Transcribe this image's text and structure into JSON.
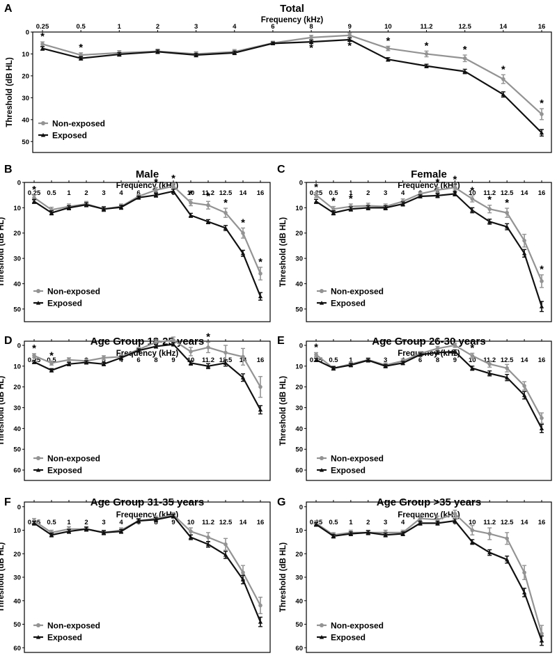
{
  "figure": {
    "series_legend": [
      "Non-exposed",
      "Exposed"
    ],
    "colors": {
      "non_exposed": "#939393",
      "exposed": "#111111"
    }
  },
  "chart_data": [
    {
      "type": "line",
      "panel": "A",
      "title": "Total",
      "xlabel": "Frequency (kHz)",
      "ylabel": "Threshold (dB HL)",
      "categories": [
        "0.25",
        "0.5",
        "1",
        "2",
        "3",
        "4",
        "6",
        "8",
        "9",
        "10",
        "11.2",
        "12.5",
        "14",
        "16"
      ],
      "ylim": [
        0,
        55
      ],
      "yticks": [
        0,
        10,
        20,
        30,
        40,
        50
      ],
      "y_inverted": true,
      "series": [
        {
          "name": "Non-exposed",
          "values": [
            5.5,
            10.5,
            9.5,
            8.8,
            10,
            9.0,
            5,
            2.5,
            1.5,
            7.5,
            10,
            12,
            21.5,
            37.5
          ],
          "errors": [
            1,
            1,
            1,
            1,
            1,
            1,
            0.8,
            1,
            1,
            1,
            1.3,
            1.5,
            2,
            2.5
          ]
        },
        {
          "name": "Exposed",
          "values": [
            7.5,
            12,
            10.2,
            9,
            10.5,
            9.5,
            5.2,
            4.5,
            3.5,
            12.5,
            15.5,
            18,
            28.5,
            46
          ],
          "errors": [
            0.8,
            0.8,
            0.8,
            0.8,
            0.8,
            0.8,
            0.6,
            0.8,
            0.8,
            0.8,
            0.8,
            1,
            1.2,
            1.5
          ]
        }
      ],
      "significance": [
        {
          "category": "0.25",
          "position": "above"
        },
        {
          "category": "0.5",
          "position": "above"
        },
        {
          "category": "8",
          "position": "below"
        },
        {
          "category": "9",
          "position": "below"
        },
        {
          "category": "10",
          "position": "above"
        },
        {
          "category": "11.2",
          "position": "above"
        },
        {
          "category": "12.5",
          "position": "above"
        },
        {
          "category": "14",
          "position": "above"
        },
        {
          "category": "16",
          "position": "above"
        }
      ],
      "significance_marker": "*"
    },
    {
      "type": "line",
      "panel": "B",
      "title": "Male",
      "xlabel": "Frequency (kHz)",
      "ylabel": "Threshold (dB HL)",
      "categories": [
        "0.25",
        "0.5",
        "1",
        "2",
        "3",
        "4",
        "6",
        "8",
        "9",
        "10",
        "11.2",
        "12.5",
        "14",
        "16"
      ],
      "ylim": [
        0,
        55
      ],
      "yticks": [
        0,
        10,
        20,
        30,
        40,
        50
      ],
      "y_inverted": true,
      "series": [
        {
          "name": "Non-exposed",
          "values": [
            6,
            10.8,
            9.5,
            8.5,
            10.5,
            9.5,
            5.5,
            3.0,
            1.5,
            8,
            9,
            12,
            20,
            36
          ],
          "errors": [
            1,
            1,
            1,
            1,
            1,
            1,
            0.8,
            1,
            1,
            1.2,
            1.5,
            1.8,
            2,
            2.5
          ]
        },
        {
          "name": "Exposed",
          "values": [
            7.5,
            12,
            10,
            8.8,
            10.5,
            9.8,
            6,
            5,
            3.5,
            13,
            15.5,
            18,
            28,
            45
          ],
          "errors": [
            0.8,
            0.8,
            0.8,
            0.8,
            0.8,
            0.8,
            0.6,
            0.8,
            0.8,
            0.8,
            0.8,
            1,
            1.2,
            1.5
          ]
        }
      ],
      "significance": [
        {
          "category": "0.25",
          "position": "above"
        },
        {
          "category": "8",
          "position": "above"
        },
        {
          "category": "9",
          "position": "above"
        },
        {
          "category": "10",
          "position": "above"
        },
        {
          "category": "11.2",
          "position": "above"
        },
        {
          "category": "12.5",
          "position": "above"
        },
        {
          "category": "14",
          "position": "above"
        },
        {
          "category": "16",
          "position": "above"
        }
      ],
      "significance_marker": "*"
    },
    {
      "type": "line",
      "panel": "C",
      "title": "Female",
      "xlabel": "Frequency (kHz)",
      "ylabel": "Threshold (dB HL)",
      "categories": [
        "0.25",
        "0.5",
        "1",
        "2",
        "3",
        "4",
        "6",
        "8",
        "9",
        "10",
        "11.2",
        "12.5",
        "14",
        "16"
      ],
      "ylim": [
        0,
        55
      ],
      "yticks": [
        0,
        10,
        20,
        30,
        40,
        50
      ],
      "y_inverted": true,
      "series": [
        {
          "name": "Non-exposed",
          "values": [
            5,
            10.5,
            9.5,
            9.2,
            9.5,
            7.5,
            4.5,
            3,
            2,
            6.5,
            10.5,
            12,
            23,
            39
          ],
          "errors": [
            1,
            1,
            1,
            1,
            1,
            1,
            0.8,
            1,
            1,
            1.2,
            1.5,
            1.8,
            2.5,
            2.5
          ]
        },
        {
          "name": "Exposed",
          "values": [
            7.5,
            12,
            10.5,
            10,
            10,
            8.5,
            5.5,
            5.2,
            4.5,
            11,
            15.5,
            17.5,
            28,
            49
          ],
          "errors": [
            0.8,
            0.8,
            0.8,
            0.8,
            0.8,
            0.8,
            0.6,
            0.8,
            0.8,
            1,
            1,
            1.2,
            1.5,
            2
          ]
        }
      ],
      "significance": [
        {
          "category": "0.25",
          "position": "above"
        },
        {
          "category": "0.5",
          "position": "above"
        },
        {
          "category": "1",
          "position": "above"
        },
        {
          "category": "8",
          "position": "above"
        },
        {
          "category": "9",
          "position": "above"
        },
        {
          "category": "10",
          "position": "above"
        },
        {
          "category": "11.2",
          "position": "above"
        },
        {
          "category": "12.5",
          "position": "above"
        },
        {
          "category": "16",
          "position": "above"
        }
      ],
      "significance_marker": "*"
    },
    {
      "type": "line",
      "panel": "D",
      "title": "Age Group 18-25 years",
      "xlabel": "Frequency (kHz)",
      "ylabel": "Threshold (dB HL)",
      "categories": [
        "0.25",
        "0.5",
        "1",
        "2",
        "3",
        "4",
        "6",
        "8",
        "9",
        "10",
        "11.2",
        "12.5",
        "14",
        "16"
      ],
      "ylim": [
        -2,
        65
      ],
      "yticks": [
        0,
        10,
        20,
        30,
        40,
        50,
        60
      ],
      "y_inverted": true,
      "series": [
        {
          "name": "Non-exposed",
          "values": [
            5,
            8.5,
            7,
            7.5,
            6,
            5.5,
            2,
            -1.5,
            -2.5,
            3,
            1,
            3.5,
            5.5,
            20
          ],
          "errors": [
            1,
            1,
            1,
            1,
            1,
            1,
            1,
            1.2,
            1.5,
            2,
            2.5,
            3.5,
            4,
            5
          ]
        },
        {
          "name": "Exposed",
          "values": [
            8,
            12,
            9,
            8.2,
            9,
            6,
            2.5,
            0.5,
            -0.5,
            8.5,
            10,
            8.5,
            15.5,
            31
          ],
          "errors": [
            0.8,
            0.8,
            0.8,
            0.8,
            0.8,
            0.8,
            0.8,
            0.8,
            0.8,
            1,
            1.2,
            1.5,
            1.8,
            2
          ]
        }
      ],
      "significance": [
        {
          "category": "0.25",
          "position": "above"
        },
        {
          "category": "0.5",
          "position": "above"
        },
        {
          "category": "11.2",
          "position": "above"
        }
      ],
      "significance_marker": "*"
    },
    {
      "type": "line",
      "panel": "E",
      "title": "Age Group 26-30 years",
      "xlabel": "Frequency (kHz)",
      "ylabel": "Threshold (dB HL)",
      "categories": [
        "0.25",
        "0.5",
        "1",
        "2",
        "3",
        "4",
        "6",
        "8",
        "9",
        "10",
        "11.2",
        "12.5",
        "14",
        "16"
      ],
      "ylim": [
        -2,
        65
      ],
      "yticks": [
        0,
        10,
        20,
        30,
        40,
        50,
        60
      ],
      "y_inverted": true,
      "series": [
        {
          "name": "Non-exposed",
          "values": [
            4.5,
            11,
            9,
            7,
            9.5,
            7.5,
            4,
            1.5,
            0,
            5,
            9,
            11,
            19.5,
            35
          ],
          "errors": [
            1,
            1,
            1,
            1,
            1,
            1,
            1,
            1,
            1,
            1.2,
            1.5,
            1.8,
            2,
            2.5
          ]
        },
        {
          "name": "Exposed",
          "values": [
            7,
            11,
            9.5,
            7.2,
            10,
            8.5,
            4.5,
            3.5,
            3,
            11,
            13.5,
            15.5,
            24,
            40
          ],
          "errors": [
            0.8,
            0.8,
            0.8,
            0.8,
            0.8,
            0.8,
            0.8,
            0.8,
            0.8,
            1,
            1.2,
            1.5,
            1.8,
            2
          ]
        }
      ],
      "significance": [
        {
          "category": "0.25",
          "position": "above"
        },
        {
          "category": "10",
          "position": "above"
        }
      ],
      "significance_marker": "*"
    },
    {
      "type": "line",
      "panel": "F",
      "title": "Age Group 31-35 years",
      "xlabel": "Frequency (kHz)",
      "ylabel": "Threshold (dB HL)",
      "categories": [
        "0.25",
        "0.5",
        "1",
        "2",
        "3",
        "4",
        "6",
        "8",
        "9",
        "10",
        "11.2",
        "12.5",
        "14",
        "16"
      ],
      "ylim": [
        -2,
        62
      ],
      "yticks": [
        0,
        10,
        20,
        30,
        40,
        50,
        60
      ],
      "y_inverted": true,
      "series": [
        {
          "name": "Non-exposed",
          "values": [
            6,
            11,
            9.5,
            9.5,
            11,
            10,
            6,
            5,
            3.5,
            10.5,
            13,
            16,
            28,
            42
          ],
          "errors": [
            1,
            1,
            1,
            1,
            1,
            1,
            1,
            1,
            1,
            1.5,
            2,
            2.5,
            3,
            3.5
          ]
        },
        {
          "name": "Exposed",
          "values": [
            7,
            12,
            10.5,
            9.5,
            11,
            10.5,
            6,
            5.5,
            4,
            13,
            16,
            20.5,
            31,
            49
          ],
          "errors": [
            0.8,
            0.8,
            0.8,
            0.8,
            0.8,
            0.8,
            0.8,
            0.8,
            0.8,
            1,
            1.2,
            1.5,
            1.8,
            2
          ]
        }
      ],
      "significance": [],
      "significance_marker": "*"
    },
    {
      "type": "line",
      "panel": "G",
      "title": "Age Group >35 years",
      "xlabel": "Frequency (kHz)",
      "ylabel": "Threshold (dB HL)",
      "categories": [
        "0.25",
        "0.5",
        "1",
        "2",
        "3",
        "4",
        "6",
        "8",
        "9",
        "10",
        "11.2",
        "12.5",
        "14",
        "16"
      ],
      "ylim": [
        -2,
        62
      ],
      "yticks": [
        0,
        10,
        20,
        30,
        40,
        50,
        60
      ],
      "y_inverted": true,
      "series": [
        {
          "name": "Non-exposed",
          "values": [
            7,
            12,
            11,
            11,
            11,
            11,
            5,
            5.5,
            3,
            10,
            11.5,
            13.5,
            28,
            54
          ],
          "errors": [
            1,
            1,
            1,
            1,
            1,
            1,
            1.5,
            1.5,
            1.5,
            2,
            2.5,
            2.5,
            3,
            3.5
          ]
        },
        {
          "name": "Exposed",
          "values": [
            7.5,
            12.5,
            11.5,
            11,
            12,
            11.5,
            7,
            7,
            6,
            15,
            19.5,
            22.5,
            36.5,
            57
          ],
          "errors": [
            0.8,
            0.8,
            0.8,
            0.8,
            0.8,
            0.8,
            0.8,
            0.8,
            0.8,
            1,
            1.2,
            1.5,
            1.8,
            2
          ]
        }
      ],
      "significance": [],
      "significance_marker": "*"
    }
  ]
}
